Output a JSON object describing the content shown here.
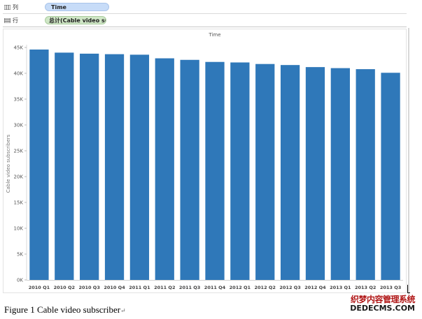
{
  "shelves": {
    "columns": {
      "label": "列",
      "pill": "Time"
    },
    "rows": {
      "label": "行",
      "pill": "总计(Cable video su.."
    }
  },
  "colors": {
    "bar": "#2f78b9",
    "columns_pill": "#c7dcf8",
    "rows_pill": "#cfe6c6"
  },
  "icons": {
    "columns": "columns-shelf-icon",
    "rows": "rows-shelf-icon"
  },
  "chart_data": {
    "type": "bar",
    "title": "Time",
    "xlabel": "",
    "ylabel": "Cable video subscribers",
    "categories": [
      "2010 Q1",
      "2010 Q2",
      "2010 Q3",
      "2010 Q4",
      "2011 Q1",
      "2011 Q2",
      "2011 Q3",
      "2011 Q4",
      "2012 Q1",
      "2012 Q2",
      "2012 Q3",
      "2012 Q4",
      "2013 Q1",
      "2013 Q2",
      "2013 Q3"
    ],
    "values": [
      44600,
      44000,
      43800,
      43700,
      43600,
      42900,
      42600,
      42200,
      42100,
      41800,
      41600,
      41200,
      41000,
      40800,
      40100
    ],
    "ylim": [
      0,
      45000
    ],
    "yticks": [
      0,
      5000,
      10000,
      15000,
      20000,
      25000,
      30000,
      35000,
      40000,
      45000
    ],
    "ytick_labels": [
      "0K",
      "5K",
      "10K",
      "15K",
      "20K",
      "25K",
      "30K",
      "35K",
      "40K",
      "45K"
    ],
    "grid": false,
    "legend": "none"
  },
  "caption": "Figure 1 Cable video subscriber",
  "caption_mark": "↵",
  "watermark": {
    "line1": "织梦内容管理系统",
    "line2": "DEDECMS.COM"
  }
}
